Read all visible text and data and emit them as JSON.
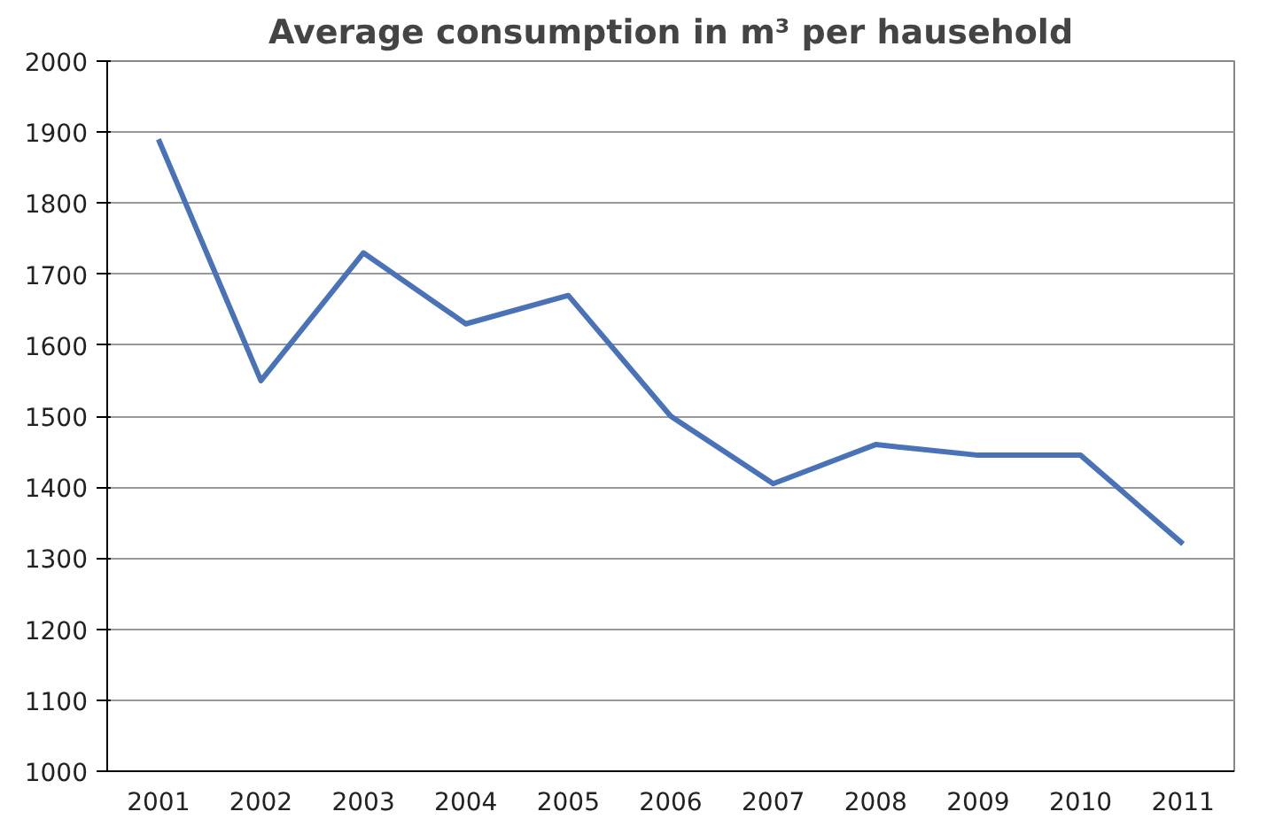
{
  "chart_data": {
    "type": "line",
    "title": "Average consumption in m³ per hausehold",
    "categories": [
      "2001",
      "2002",
      "2003",
      "2004",
      "2005",
      "2006",
      "2007",
      "2008",
      "2009",
      "2010",
      "2011"
    ],
    "series": [
      {
        "color": "#4a72b8",
        "values": [
          1890,
          1550,
          1730,
          1630,
          1670,
          1500,
          1405,
          1460,
          1445,
          1445,
          1320
        ]
      }
    ],
    "ylim": [
      1000,
      2000
    ],
    "yticks": [
      1000,
      1100,
      1200,
      1300,
      1400,
      1500,
      1600,
      1700,
      1800,
      1900,
      2000
    ],
    "grid": "y",
    "line_style": "solid"
  }
}
